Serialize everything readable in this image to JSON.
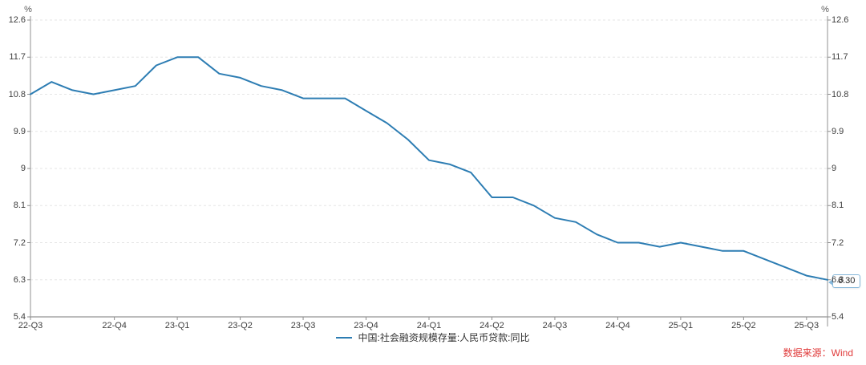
{
  "chart_data": {
    "type": "line",
    "title": "",
    "unit": "%",
    "x": [
      "2022-07",
      "2022-08",
      "2022-09",
      "2022-10",
      "2022-11",
      "2022-12",
      "2023-01",
      "2023-02",
      "2023-03",
      "2023-04",
      "2023-05",
      "2023-06",
      "2023-07",
      "2023-08",
      "2023-09",
      "2023-10",
      "2023-11",
      "2023-12",
      "2024-01",
      "2024-02",
      "2024-03",
      "2024-04",
      "2024-05",
      "2024-06",
      "2024-07",
      "2024-08",
      "2024-09",
      "2024-10",
      "2024-11",
      "2024-12",
      "2025-01",
      "2025-02",
      "2025-03",
      "2025-04",
      "2025-05",
      "2025-06",
      "2025-07",
      "2025-08",
      "2025-09"
    ],
    "series": [
      {
        "name": "中国:社会融资规模存量:人民币贷款:同比",
        "color": "#2d7db3",
        "values": [
          10.8,
          11.1,
          10.9,
          10.8,
          10.9,
          11.0,
          11.5,
          11.7,
          11.7,
          11.3,
          11.2,
          11.0,
          10.9,
          10.7,
          10.7,
          10.7,
          10.4,
          10.1,
          9.7,
          9.2,
          9.1,
          8.9,
          8.3,
          8.3,
          8.1,
          7.8,
          7.7,
          7.4,
          7.2,
          7.2,
          7.1,
          7.2,
          7.1,
          7.0,
          7.0,
          6.8,
          6.6,
          6.4,
          6.3
        ]
      }
    ],
    "ylim": [
      5.4,
      12.6
    ],
    "y_ticks": [
      "12.6",
      "11.7",
      "10.8",
      "9.9",
      "9",
      "8.1",
      "7.2",
      "6.3",
      "5.4"
    ],
    "x_tick_labels": [
      "22-Q3",
      "22-Q4",
      "23-Q1",
      "23-Q2",
      "23-Q3",
      "23-Q4",
      "24-Q1",
      "24-Q2",
      "24-Q3",
      "24-Q4",
      "25-Q1",
      "25-Q2",
      "25-Q3"
    ],
    "x_tick_month_index": [
      0,
      4,
      7,
      10,
      13,
      16,
      19,
      22,
      25,
      28,
      31,
      34,
      37
    ],
    "grid": "horizontal-dashed",
    "legend_position": "bottom-center",
    "end_label": "6.30"
  },
  "axes": {
    "unit_left": "%",
    "unit_right": "%"
  },
  "source": {
    "label": "数据来源：Wind"
  },
  "colors": {
    "line": "#2d7db3",
    "grid": "#e5e5e5",
    "axis_vertical": "#c8c8c8",
    "axis_horizontal": "#a6a6a6",
    "tick_mark": "#8c8c8c",
    "tick_text": "#3d3d3d",
    "source_text": "#e03b3b",
    "tooltip_border": "#85b7da"
  }
}
